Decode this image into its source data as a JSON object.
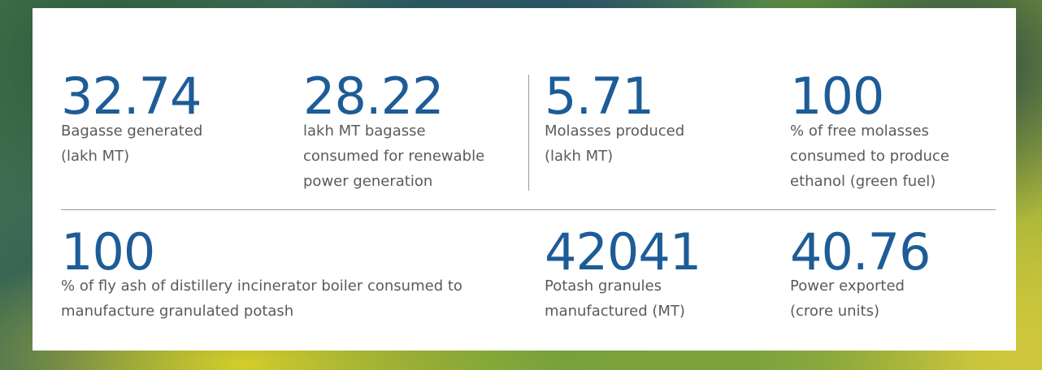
{
  "stats": [
    {
      "value": "32.74",
      "label": [
        "Bagasse generated",
        "(lakh MT)"
      ]
    },
    {
      "value": "28.22",
      "label": [
        "lakh MT bagasse",
        "consumed for renewable",
        "power generation"
      ]
    },
    {
      "value": "5.71",
      "label": [
        "Molasses produced",
        "(lakh MT)"
      ]
    },
    {
      "value": "100",
      "label": [
        "% of free molasses",
        "consumed to produce",
        "ethanol (green fuel)"
      ]
    },
    {
      "value": "100",
      "label": [
        "% of fly ash of distillery incinerator boiler consumed to",
        "manufacture granulated potash"
      ]
    },
    {
      "value": "42041",
      "label": [
        "Potash granules",
        "manufactured (MT)"
      ]
    },
    {
      "value": "40.76",
      "label": [
        "Power exported",
        "(crore units)"
      ]
    }
  ]
}
